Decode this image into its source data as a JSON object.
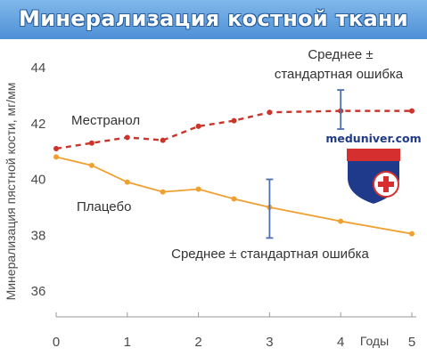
{
  "chart_data": {
    "type": "line",
    "title": "Минерализация костной ткани",
    "ylabel": "Минерализация пястной кости, мг/мм",
    "xlabel": "Годы",
    "xlim": [
      0,
      5
    ],
    "ylim": [
      35,
      45
    ],
    "x_ticks": [
      0,
      1,
      2,
      3,
      4,
      5
    ],
    "y_ticks": [
      36,
      38,
      40,
      42,
      44
    ],
    "grid": false,
    "series": [
      {
        "name": "Местранол",
        "style": "dashed",
        "color": "#c9352b",
        "x": [
          0,
          0.5,
          1,
          1.5,
          2,
          2.5,
          3,
          4,
          5
        ],
        "values": [
          41.1,
          41.3,
          41.5,
          41.4,
          41.9,
          42.1,
          42.4,
          42.45,
          42.45
        ]
      },
      {
        "name": "Плацебо",
        "style": "solid",
        "color": "#f0a030",
        "x": [
          0,
          0.5,
          1,
          1.5,
          2,
          2.5,
          3,
          4,
          5
        ],
        "values": [
          40.8,
          40.5,
          39.9,
          39.55,
          39.65,
          39.3,
          39.0,
          38.5,
          38.05
        ]
      }
    ],
    "error_bars": [
      {
        "x": 4,
        "low": 41.8,
        "high": 43.2,
        "color": "#4e6fb0"
      },
      {
        "x": 3,
        "low": 37.9,
        "high": 40.0,
        "color": "#4e6fb0"
      }
    ],
    "annotations": [
      {
        "text_lines": [
          "Среднее ±",
          "стандартная ошибка"
        ]
      },
      {
        "text_lines": [
          "Среднее ± стандартная ошибка"
        ]
      }
    ]
  },
  "watermark": {
    "text": "meduniver.com",
    "icon": "medical-cross-shield-logo"
  }
}
